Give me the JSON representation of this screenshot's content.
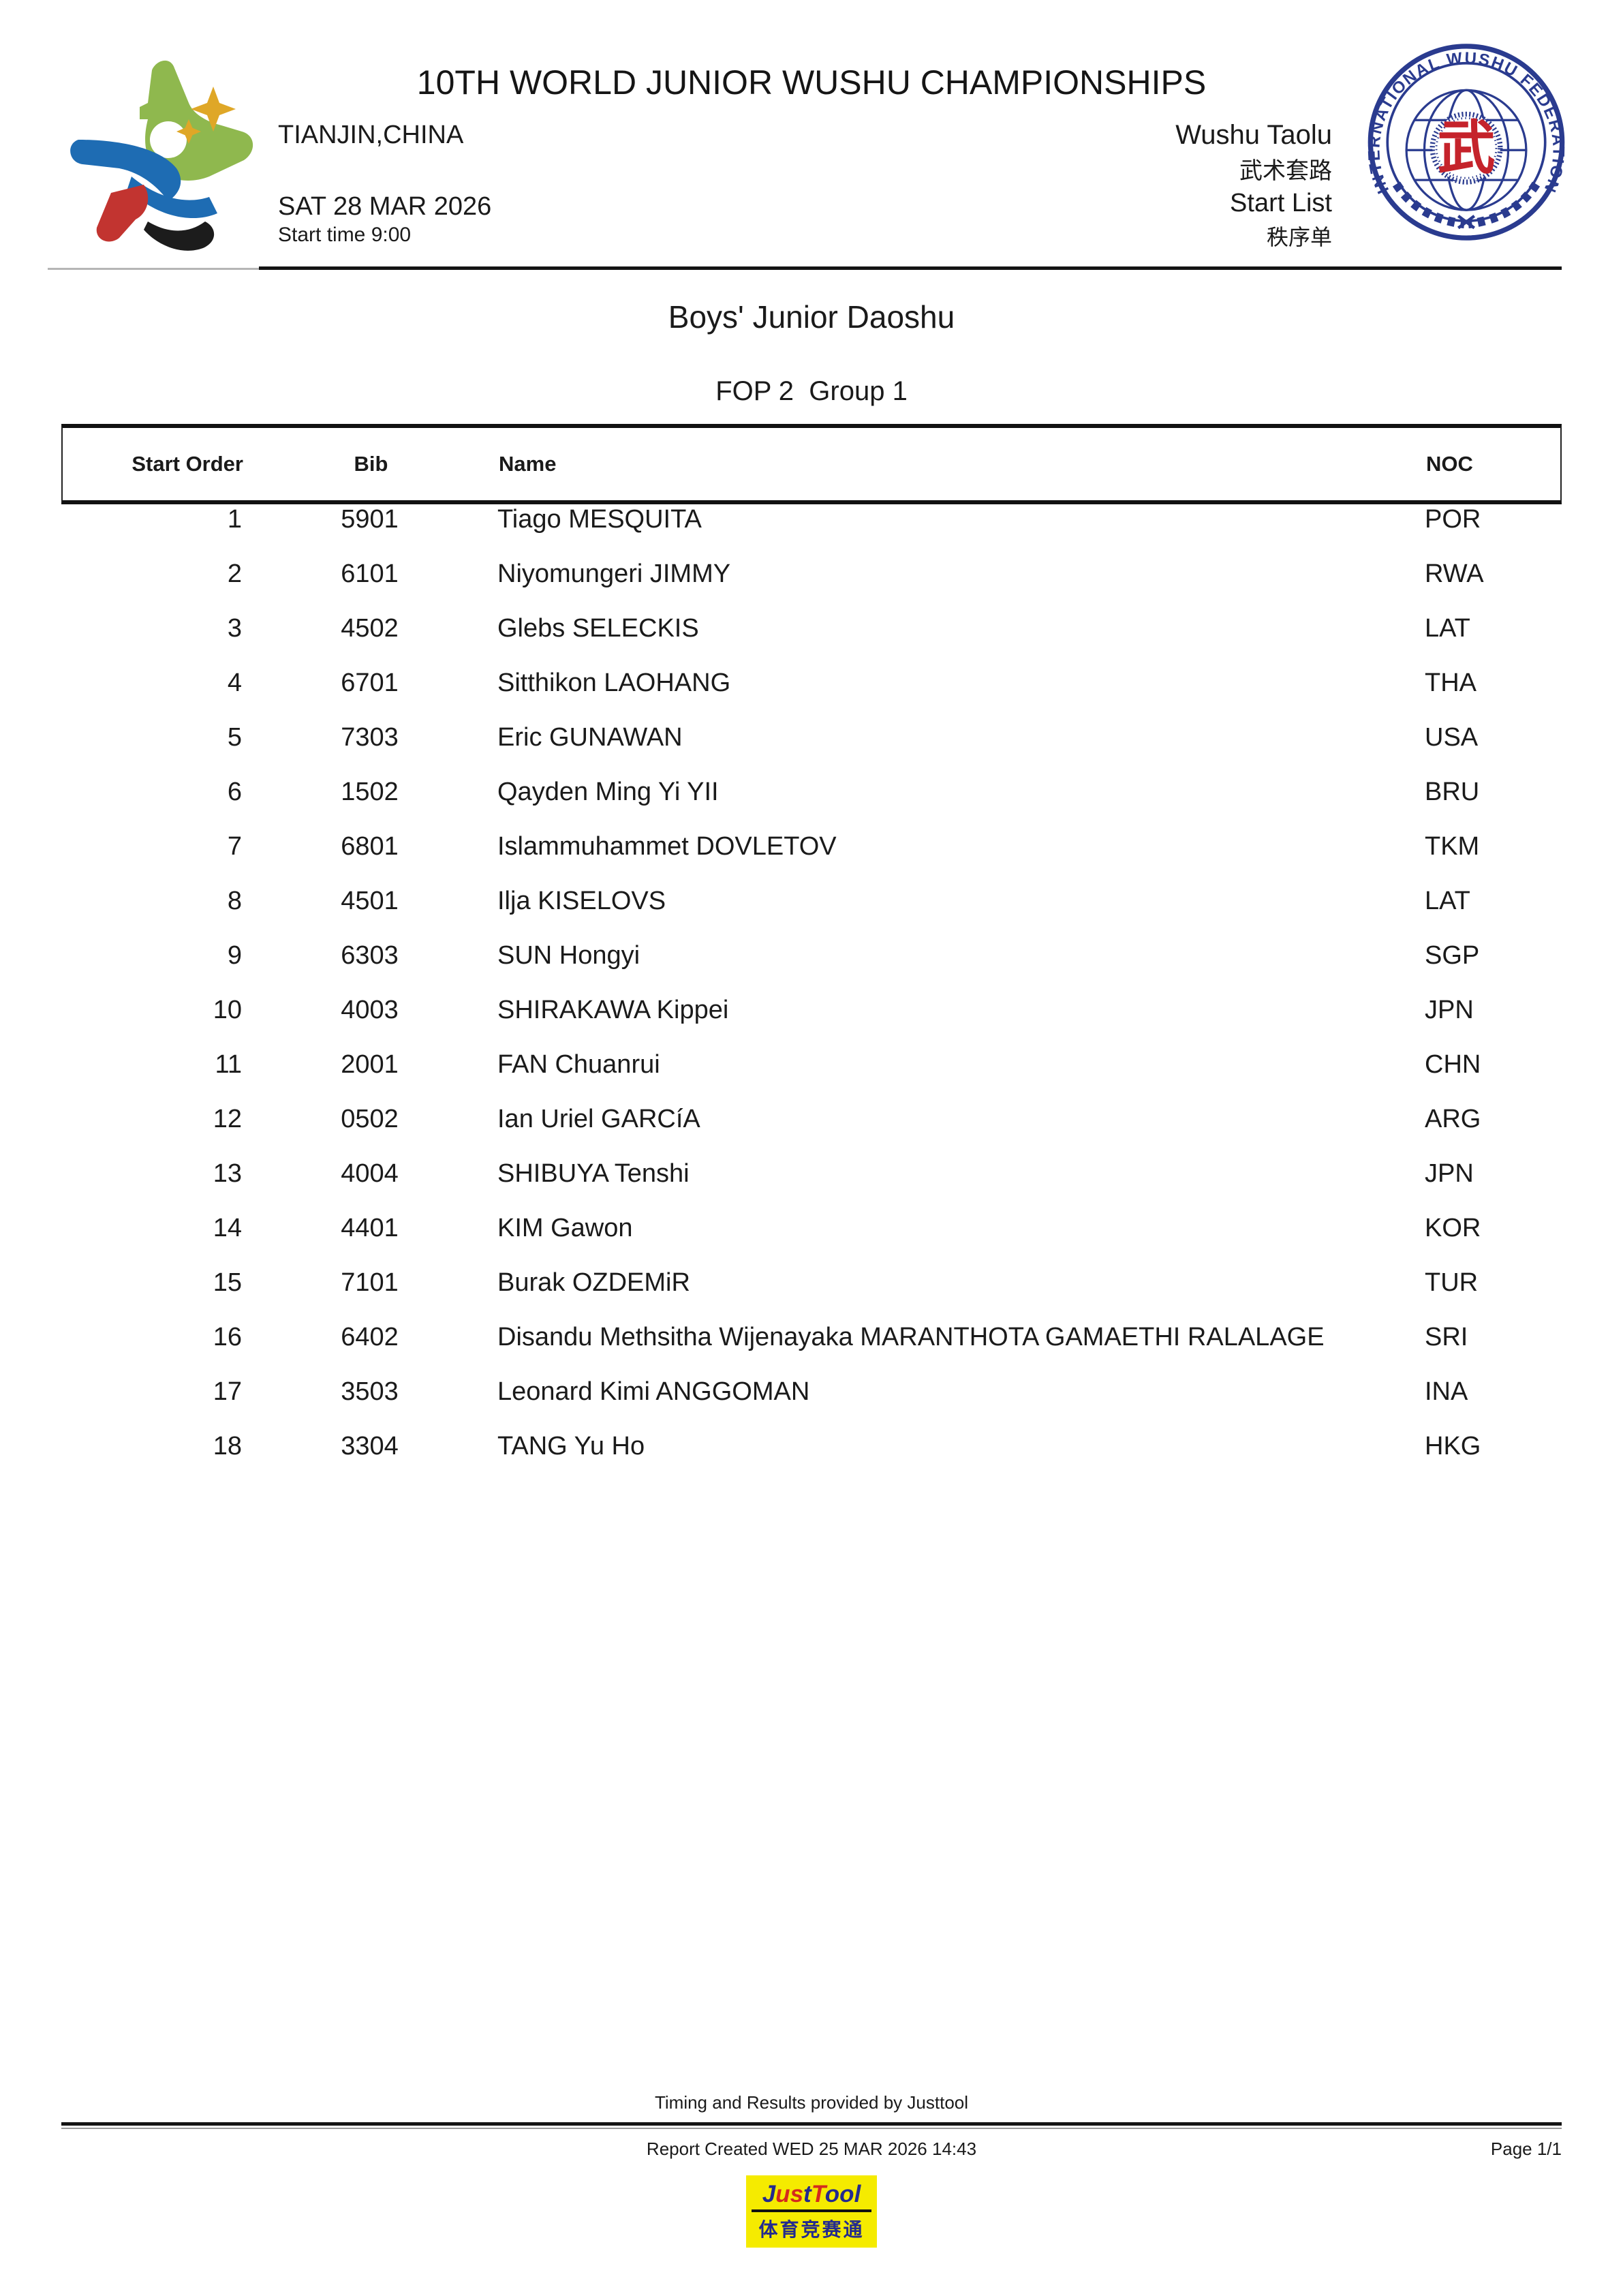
{
  "header": {
    "title": "10TH WORLD JUNIOR WUSHU CHAMPIONSHIPS",
    "location": "TIANJIN,CHINA",
    "date": "SAT 28 MAR 2026",
    "start_time": "Start time 9:00",
    "discipline": "Wushu Taolu",
    "discipline_zh": "武术套路",
    "doc_type": "Start List",
    "doc_type_zh": "秩序单"
  },
  "iwuf": {
    "ring_text": "INTERNATIONAL WUSHU FEDERATION",
    "wu_char": "武"
  },
  "event": {
    "title": "Boys' Junior Daoshu",
    "session": "FOP 2  Group 1"
  },
  "table": {
    "columns": [
      "Start Order",
      "Bib",
      "Name",
      "NOC"
    ],
    "rows": [
      {
        "order": "1",
        "bib": "5901",
        "name": "Tiago MESQUITA",
        "noc": "POR"
      },
      {
        "order": "2",
        "bib": "6101",
        "name": "Niyomungeri JIMMY",
        "noc": "RWA"
      },
      {
        "order": "3",
        "bib": "4502",
        "name": "Glebs SELECKIS",
        "noc": "LAT"
      },
      {
        "order": "4",
        "bib": "6701",
        "name": "Sitthikon LAOHANG",
        "noc": "THA"
      },
      {
        "order": "5",
        "bib": "7303",
        "name": "Eric GUNAWAN",
        "noc": "USA"
      },
      {
        "order": "6",
        "bib": "1502",
        "name": "Qayden Ming Yi YII",
        "noc": "BRU"
      },
      {
        "order": "7",
        "bib": "6801",
        "name": "Islammuhammet DOVLETOV",
        "noc": "TKM"
      },
      {
        "order": "8",
        "bib": "4501",
        "name": "Ilja KISELOVS",
        "noc": "LAT"
      },
      {
        "order": "9",
        "bib": "6303",
        "name": "SUN Hongyi",
        "noc": "SGP"
      },
      {
        "order": "10",
        "bib": "4003",
        "name": "SHIRAKAWA Kippei",
        "noc": "JPN"
      },
      {
        "order": "11",
        "bib": "2001",
        "name": "FAN Chuanrui",
        "noc": "CHN"
      },
      {
        "order": "12",
        "bib": "0502",
        "name": "Ian Uriel GARCíA",
        "noc": "ARG"
      },
      {
        "order": "13",
        "bib": "4004",
        "name": "SHIBUYA Tenshi",
        "noc": "JPN"
      },
      {
        "order": "14",
        "bib": "4401",
        "name": "KIM Gawon",
        "noc": "KOR"
      },
      {
        "order": "15",
        "bib": "7101",
        "name": "Burak OZDEMiR",
        "noc": "TUR"
      },
      {
        "order": "16",
        "bib": "6402",
        "name": "Disandu Methsitha Wijenayaka MARANTHOTA GAMAETHI RALALAGE",
        "noc": "SRI"
      },
      {
        "order": "17",
        "bib": "3503",
        "name": "Leonard Kimi ANGGOMAN",
        "noc": "INA"
      },
      {
        "order": "18",
        "bib": "3304",
        "name": "TANG Yu Ho",
        "noc": "HKG"
      }
    ]
  },
  "footer": {
    "provider": "Timing and Results provided by Justtool",
    "report_created": "Report Created WED 25 MAR 2026 14:43",
    "page": "Page 1/1",
    "logo_letters": [
      {
        "ch": "J",
        "color": "#232a8f"
      },
      {
        "ch": "u",
        "color": "#d42a1e"
      },
      {
        "ch": "s",
        "color": "#d42a1e"
      },
      {
        "ch": "t",
        "color": "#232a8f"
      },
      {
        "ch": "T",
        "color": "#d42a1e"
      },
      {
        "ch": "o",
        "color": "#232a8f"
      },
      {
        "ch": "o",
        "color": "#232a8f"
      },
      {
        "ch": "l",
        "color": "#232a8f"
      }
    ],
    "logo_text_zh": "体育竞赛通"
  },
  "colors": {
    "iwuf_navy": "#2a3b8f",
    "wu_red": "#c5232b",
    "justtool_yellow": "#f5eb00",
    "star_green": "#8fb84e",
    "star_blue": "#1e6cb3",
    "star_red": "#c23430",
    "star_black": "#1c1c1c",
    "star_gold": "#dfa727"
  }
}
